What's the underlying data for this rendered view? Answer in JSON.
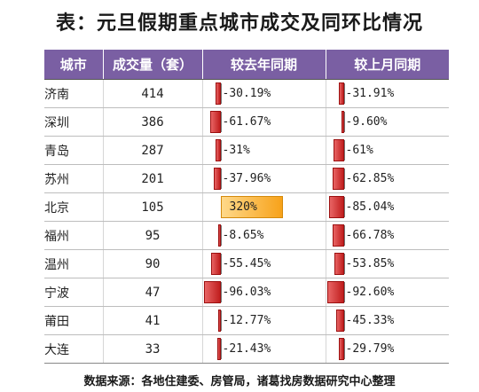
{
  "title": "表：元旦假期重点城市成交及同环比情况",
  "source": "数据来源：各地住建委、房管局，诸葛找房数据研究中心整理",
  "headers": [
    "城市",
    "成交量（套）",
    "较去年同期",
    "较上月同期"
  ],
  "colors": {
    "header_bg": "#7a5fa3",
    "negative_bar": "#d63a3a",
    "positive_bar": "#f7a21a"
  },
  "chart_data": {
    "type": "table",
    "title": "表：元旦假期重点城市成交及同环比情况",
    "columns": [
      "城市",
      "成交量（套）",
      "较去年同期",
      "较上月同期"
    ],
    "rows": [
      {
        "city": "济南",
        "volume": 414,
        "yoy": -30.19,
        "mom": -31.91
      },
      {
        "city": "深圳",
        "volume": 386,
        "yoy": -61.67,
        "mom": -9.6
      },
      {
        "city": "青岛",
        "volume": 287,
        "yoy": -31,
        "mom": -61
      },
      {
        "city": "苏州",
        "volume": 201,
        "yoy": -37.96,
        "mom": -62.85
      },
      {
        "city": "北京",
        "volume": 105,
        "yoy": 320,
        "mom": -85.04
      },
      {
        "city": "福州",
        "volume": 95,
        "yoy": -8.65,
        "mom": -66.78
      },
      {
        "city": "温州",
        "volume": 90,
        "yoy": -55.45,
        "mom": -53.85
      },
      {
        "city": "宁波",
        "volume": 47,
        "yoy": -96.03,
        "mom": -92.6
      },
      {
        "city": "莆田",
        "volume": 41,
        "yoy": -12.77,
        "mom": -45.33
      },
      {
        "city": "大连",
        "volume": 33,
        "yoy": -21.43,
        "mom": -29.79
      }
    ],
    "yoy_labels": [
      "-30.19%",
      "-61.67%",
      "-31%",
      "-37.96%",
      "320%",
      "-8.65%",
      "-55.45%",
      "-96.03%",
      "-12.77%",
      "-21.43%"
    ],
    "mom_labels": [
      "-31.91%",
      "-9.60%",
      "-61%",
      "-62.85%",
      "-85.04%",
      "-66.78%",
      "-53.85%",
      "-92.60%",
      "-45.33%",
      "-29.79%"
    ]
  }
}
